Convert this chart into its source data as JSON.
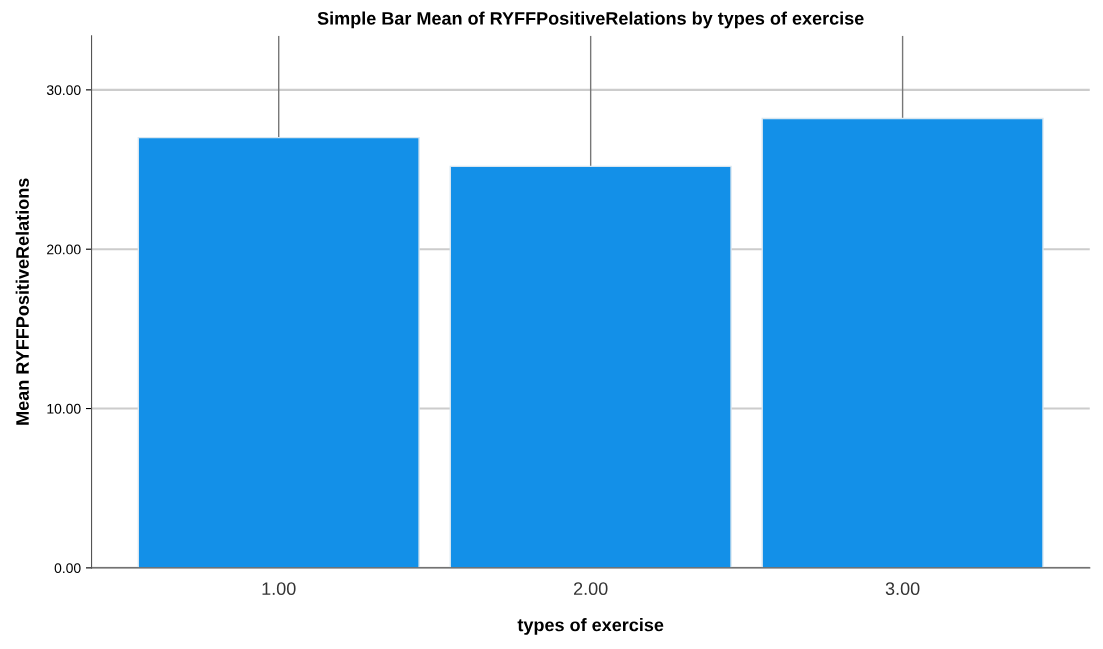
{
  "chart_data": {
    "type": "bar",
    "title": "Simple Bar Mean of RYFFPositiveRelations by types of exercise",
    "xlabel": "types of exercise",
    "ylabel": "Mean RYFFPositiveRelations",
    "categories": [
      "1.00",
      "2.00",
      "3.00"
    ],
    "values": [
      27.0,
      25.2,
      28.2
    ],
    "color": "#1390e8",
    "errors": [
      6.4,
      8.2,
      5.2
    ],
    "ylim": [
      0,
      33.4
    ],
    "yticks": [
      {
        "value": 0,
        "label": "0.00"
      },
      {
        "value": 10,
        "label": "10.00"
      },
      {
        "value": 20,
        "label": "20.00"
      },
      {
        "value": 30,
        "label": "30.00"
      }
    ],
    "grid": "y"
  }
}
